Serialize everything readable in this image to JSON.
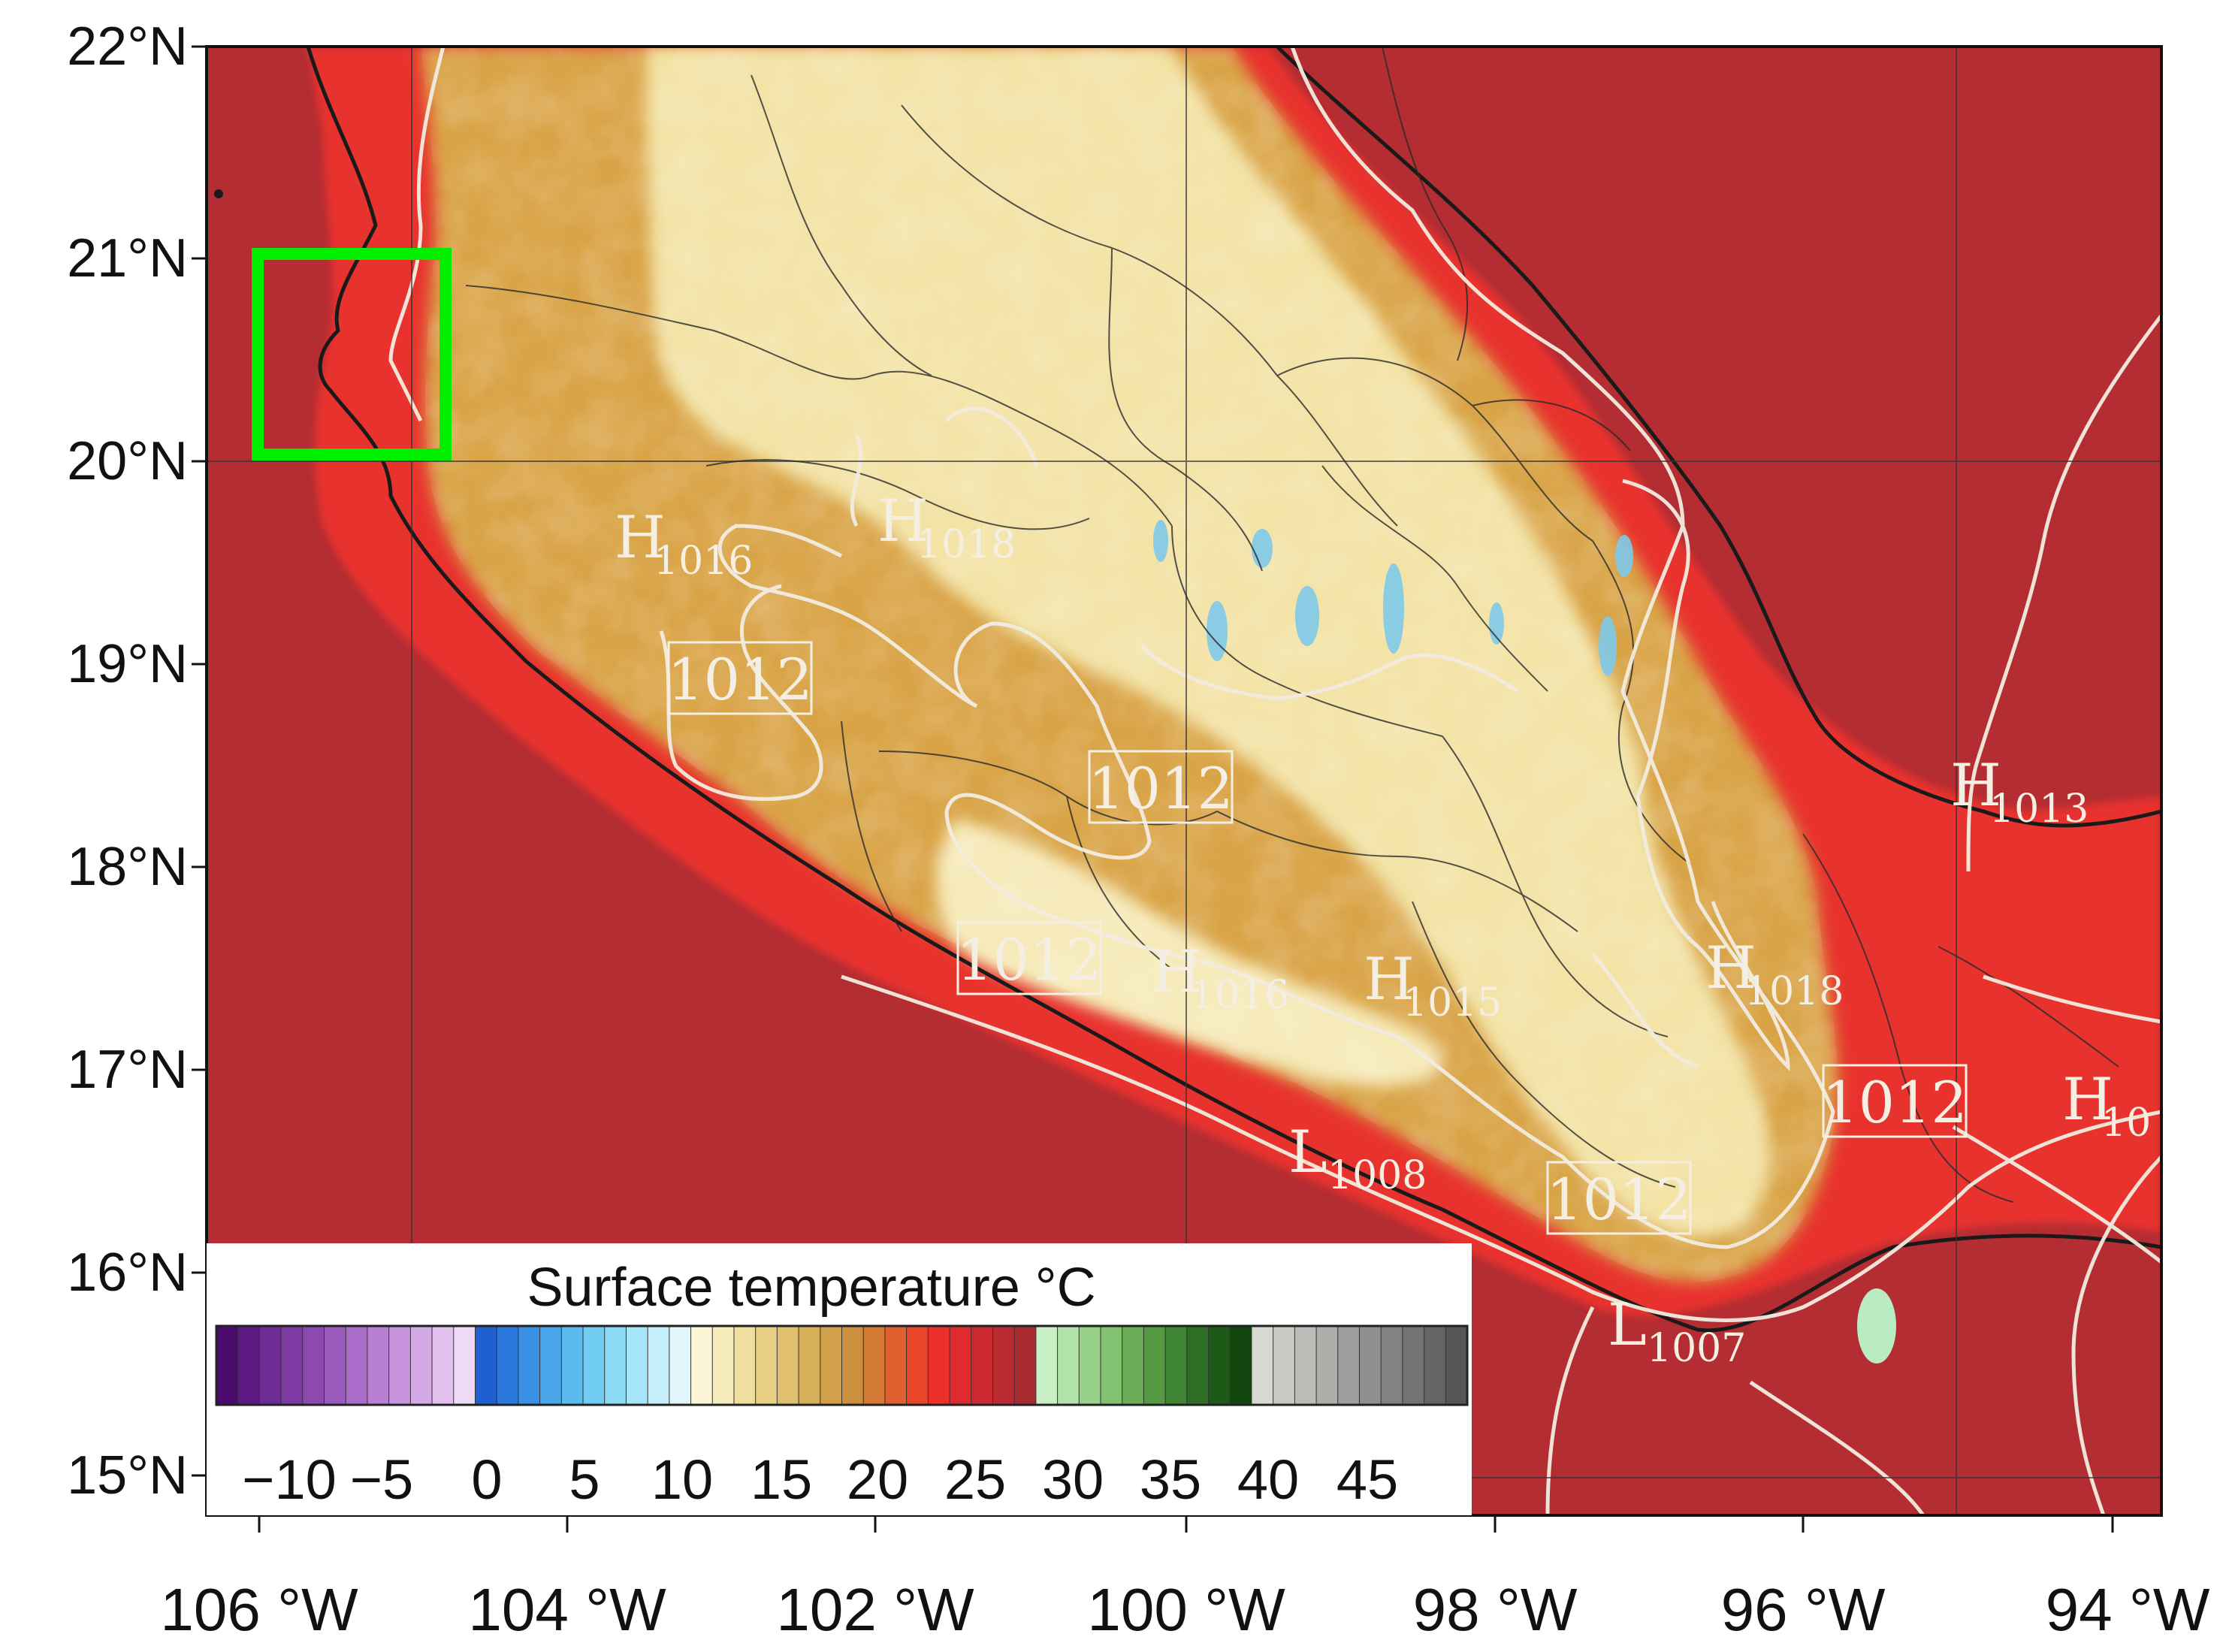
{
  "lat_labels": [
    "22°N",
    "21°N",
    "20°N",
    "19°N",
    "18°N",
    "17°N",
    "16°N",
    "15°N"
  ],
  "lon_labels": [
    "106 °W",
    "104 °W",
    "102 °W",
    "100 °W",
    "98 °W",
    "96 °W",
    "94 °W"
  ],
  "contour_labels": [
    {
      "text": "1012",
      "boxed": true
    },
    {
      "text": "1012",
      "boxed": true
    },
    {
      "text": "1012",
      "boxed": true
    },
    {
      "text": "1012",
      "boxed": true
    },
    {
      "text": "1012",
      "boxed": true
    }
  ],
  "pressure_centers": [
    {
      "letter": "H",
      "value": "1016"
    },
    {
      "letter": "H",
      "value": "1018"
    },
    {
      "letter": "H",
      "value": "1016"
    },
    {
      "letter": "H",
      "value": "1015"
    },
    {
      "letter": "H",
      "value": "1018"
    },
    {
      "letter": "H",
      "value": "1013"
    },
    {
      "letter": "H",
      "value": "10"
    },
    {
      "letter": "L",
      "value": "1008"
    },
    {
      "letter": "L",
      "value": "1007"
    }
  ],
  "legend": {
    "title": "Surface temperature °C",
    "tick_labels": [
      "−10",
      "−5",
      "0",
      "5",
      "10",
      "15",
      "20",
      "25",
      "30",
      "35",
      "40",
      "45"
    ],
    "colors": [
      "#4a0a6e",
      "#5c1a82",
      "#6d2b94",
      "#7d3aa3",
      "#8c4ab1",
      "#9a5bbd",
      "#a96cc8",
      "#b87fd2",
      "#c693dc",
      "#d4a9e6",
      "#e2c1ee",
      "#eedaf5",
      "#1f5fcf",
      "#2b78dc",
      "#3a90e4",
      "#4aa6ea",
      "#5bbbef",
      "#71ccf3",
      "#8ad9f5",
      "#a6e4f7",
      "#c4eef9",
      "#e0f6fb",
      "#fbf5d6",
      "#f6ebbb",
      "#efdea0",
      "#e8cf86",
      "#e0c06e",
      "#d8b05a",
      "#d1a04a",
      "#cb903e",
      "#d47a34",
      "#e05f2e",
      "#e8472c",
      "#ec302b",
      "#e12a2e",
      "#cc2a30",
      "#b92a31",
      "#a82a30",
      "#c8f0c4",
      "#b1e2a7",
      "#98d28a",
      "#82c16f",
      "#6bae57",
      "#549a43",
      "#3f8533",
      "#2c6f24",
      "#1d5a17",
      "#12450e",
      "#d8d8d2",
      "#c9c9c4",
      "#bbbbb7",
      "#adadaa",
      "#9e9e9c",
      "#90908f",
      "#828282",
      "#737374",
      "#646466",
      "#555558"
    ]
  },
  "highlight_box_color": "#00ee00"
}
